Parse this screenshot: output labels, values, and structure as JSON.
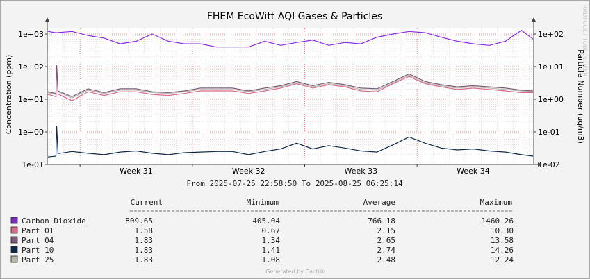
{
  "chart_data": {
    "type": "line",
    "title": "FHEM EcoWitt AQI Gases & Particles",
    "ylabel": "Concentration (ppm)",
    "y2label": "Particle Number (ug/m3)",
    "yscale": "log",
    "ylim": [
      0.1,
      1000
    ],
    "yticks": [
      "1e-01",
      "1e+00",
      "1e+01",
      "1e+02",
      "1e+03"
    ],
    "y2ticks": [
      "1e-02",
      "1e-01",
      "1e+00",
      "1e+01",
      "1e+02"
    ],
    "x_start": "2025-07-25 22:58:50",
    "x_end": "2025-08-25 06:25:14",
    "x_week_ticks": [
      {
        "label": "Week 31",
        "date": "2025-07-28"
      },
      {
        "label": "Week 32",
        "date": "2025-08-04"
      },
      {
        "label": "Week 33",
        "date": "2025-08-11"
      },
      {
        "label": "Week 34",
        "date": "2025-08-18"
      }
    ],
    "grid": true,
    "range_label": "From 2025-07-25 22:58:50 To 2025-08-25 06:25:14",
    "x": [
      "2025-07-25",
      "2025-07-26",
      "2025-07-27",
      "2025-07-28",
      "2025-07-29",
      "2025-07-30",
      "2025-07-31",
      "2025-08-01",
      "2025-08-02",
      "2025-08-03",
      "2025-08-04",
      "2025-08-05",
      "2025-08-06",
      "2025-08-07",
      "2025-08-08",
      "2025-08-09",
      "2025-08-10",
      "2025-08-11",
      "2025-08-12",
      "2025-08-13",
      "2025-08-14",
      "2025-08-15",
      "2025-08-16",
      "2025-08-17",
      "2025-08-18",
      "2025-08-19",
      "2025-08-20",
      "2025-08-21",
      "2025-08-22",
      "2025-08-23",
      "2025-08-24",
      "2025-08-25"
    ],
    "series": [
      {
        "name": "Carbon Dioxide",
        "color": "#8a2be2",
        "values": [
          1200,
          1100,
          1200,
          900,
          750,
          500,
          600,
          1000,
          600,
          500,
          500,
          400,
          400,
          400,
          600,
          450,
          550,
          650,
          450,
          550,
          500,
          800,
          1000,
          1200,
          1100,
          800,
          600,
          500,
          450,
          600,
          1300,
          700
        ]
      },
      {
        "name": "Part 01",
        "color": "#d96b8e",
        "values": [
          14,
          12,
          9,
          17,
          13,
          17,
          17,
          14,
          13,
          15,
          18,
          18,
          18,
          15,
          18,
          22,
          30,
          22,
          28,
          24,
          18,
          17,
          30,
          50,
          30,
          24,
          20,
          22,
          20,
          18,
          16,
          16
        ]
      },
      {
        "name": "Part 04",
        "color": "#7a5c7a",
        "values": [
          17,
          15,
          12,
          21,
          16,
          21,
          21,
          17,
          16,
          18,
          22,
          22,
          22,
          18,
          22,
          26,
          35,
          26,
          33,
          28,
          22,
          21,
          35,
          60,
          35,
          28,
          24,
          26,
          24,
          22,
          19,
          18
        ]
      },
      {
        "name": "Part 10",
        "color": "#0d2a4a",
        "values": [
          0.17,
          0.18,
          0.25,
          0.22,
          0.2,
          0.24,
          0.26,
          0.22,
          0.2,
          0.23,
          0.24,
          0.25,
          0.25,
          0.2,
          0.25,
          0.3,
          0.45,
          0.3,
          0.38,
          0.32,
          0.26,
          0.24,
          0.4,
          0.7,
          0.45,
          0.32,
          0.28,
          0.3,
          0.26,
          0.24,
          0.2,
          0.18
        ]
      },
      {
        "name": "Part 25",
        "color": "#b7b7aa",
        "values": [
          16,
          14,
          11,
          19,
          15,
          19,
          19,
          16,
          15,
          17,
          20,
          20,
          20,
          17,
          20,
          24,
          32,
          24,
          30,
          26,
          20,
          19,
          32,
          55,
          32,
          26,
          22,
          24,
          22,
          20,
          18,
          17
        ]
      }
    ],
    "spike": {
      "date": "2025-07-26",
      "value_ppm": 110
    },
    "legend": [
      {
        "name": "Carbon Dioxide",
        "current": "809.65",
        "minimum": "405.04",
        "average": "766.18",
        "maximum": "1460.26"
      },
      {
        "name": "Part 01",
        "current": "1.58",
        "minimum": "0.67",
        "average": "2.15",
        "maximum": "10.30"
      },
      {
        "name": "Part 04",
        "current": "1.83",
        "minimum": "1.34",
        "average": "2.65",
        "maximum": "13.58"
      },
      {
        "name": "Part 10",
        "current": "1.83",
        "minimum": "1.41",
        "average": "2.74",
        "maximum": "14.26"
      },
      {
        "name": "Part 25",
        "current": "1.83",
        "minimum": "1.08",
        "average": "2.48",
        "maximum": "12.24"
      }
    ],
    "legend_headers": [
      "Current",
      "Minimum",
      "Average",
      "Maximum"
    ],
    "legend_colors": [
      "#7b2fbe",
      "#d96b8e",
      "#7a5c7a",
      "#0d2a4a",
      "#b7b7aa"
    ]
  },
  "footer": "Generated by Cacti®",
  "watermark": "RRDTOOL / TOBI OETIKER"
}
